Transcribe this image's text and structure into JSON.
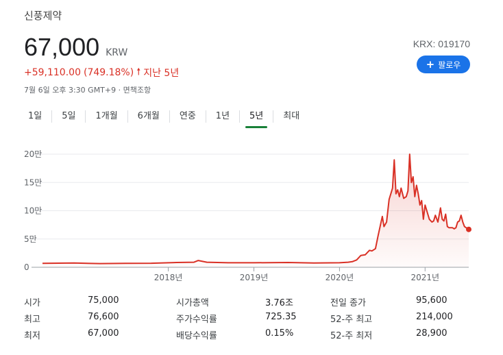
{
  "company": "신풍제약",
  "price": "67,000",
  "currency": "KRW",
  "ticker": "KRX: 019170",
  "follow": {
    "icon": "plus-icon",
    "label": "팔로우"
  },
  "change": {
    "amount": "+59,110.00",
    "percent": "(749.18%)",
    "direction": "up",
    "period": "지난 5년"
  },
  "timestamp": "7월 6일 오후 3:30 GMT+9 · 면책조항",
  "tabs": [
    {
      "label": "1일"
    },
    {
      "label": "5일"
    },
    {
      "label": "1개월"
    },
    {
      "label": "6개월"
    },
    {
      "label": "연중"
    },
    {
      "label": "1년"
    },
    {
      "label": "5년",
      "selected": true
    },
    {
      "label": "최대"
    }
  ],
  "colors": {
    "line": "#d93025",
    "accent": "#1a73e8",
    "tab_indicator": "#188038"
  },
  "chart_data": {
    "type": "area",
    "y_ticks": [
      {
        "label": "20만",
        "value": 200000
      },
      {
        "label": "15만",
        "value": 150000
      },
      {
        "label": "10만",
        "value": 100000
      },
      {
        "label": "5만",
        "value": 50000
      },
      {
        "label": "0",
        "value": 0
      }
    ],
    "x_ticks": [
      {
        "label": "2018년",
        "value": 2018.0
      },
      {
        "label": "2019년",
        "value": 2019.0
      },
      {
        "label": "2020년",
        "value": 2020.0
      },
      {
        "label": "2021년",
        "value": 2021.0
      }
    ],
    "ylim": [
      0,
      200000
    ],
    "xlim": [
      2016.53,
      2021.51
    ],
    "grid": true,
    "series": [
      {
        "x": [
          2016.53,
          2016.9,
          2017.2,
          2017.5,
          2017.8,
          2018.1,
          2018.3,
          2018.35,
          2018.45,
          2018.7,
          2019.0,
          2019.4,
          2019.7,
          2020.0,
          2020.1,
          2020.15,
          2020.2,
          2020.25,
          2020.3,
          2020.35,
          2020.38,
          2020.42,
          2020.45,
          2020.5,
          2020.52,
          2020.55,
          2020.58,
          2020.6,
          2020.62,
          2020.64,
          2020.66,
          2020.68,
          2020.7,
          2020.72,
          2020.75,
          2020.78,
          2020.8,
          2020.82,
          2020.84,
          2020.86,
          2020.88,
          2020.9,
          2020.92,
          2020.94,
          2020.96,
          2020.98,
          2021.0,
          2021.02,
          2021.05,
          2021.08,
          2021.1,
          2021.12,
          2021.15,
          2021.18,
          2021.2,
          2021.22,
          2021.24,
          2021.26,
          2021.28,
          2021.3,
          2021.32,
          2021.34,
          2021.36,
          2021.38,
          2021.4,
          2021.42,
          2021.44,
          2021.46,
          2021.48,
          2021.51
        ],
        "y": [
          7000,
          7500,
          6500,
          7000,
          7200,
          8500,
          9000,
          12000,
          9000,
          8000,
          8000,
          8500,
          7500,
          8000,
          9000,
          10000,
          13000,
          21000,
          22000,
          30000,
          29000,
          33000,
          55000,
          90000,
          72000,
          80000,
          120000,
          130000,
          140000,
          190000,
          130000,
          137000,
          125000,
          140000,
          122000,
          125000,
          135000,
          200000,
          150000,
          160000,
          125000,
          145000,
          130000,
          110000,
          118000,
          85000,
          110000,
          100000,
          85000,
          80000,
          82000,
          92000,
          80000,
          105000,
          85000,
          82000,
          94000,
          72000,
          70000,
          70000,
          70000,
          68000,
          70000,
          80000,
          82000,
          92000,
          80000,
          72000,
          70000,
          67000
        ]
      }
    ]
  },
  "stats": [
    [
      {
        "label": "시가",
        "value": "75,000"
      },
      {
        "label": "시가총액",
        "value": "3.76조"
      },
      {
        "label": "전일 종가",
        "value": "95,600"
      }
    ],
    [
      {
        "label": "최고",
        "value": "76,600"
      },
      {
        "label": "주가수익률",
        "value": "725.35"
      },
      {
        "label": "52-주 최고",
        "value": "214,000"
      }
    ],
    [
      {
        "label": "최저",
        "value": "67,000"
      },
      {
        "label": "배당수익률",
        "value": "0.15%"
      },
      {
        "label": "52-주 최저",
        "value": "28,900"
      }
    ]
  ]
}
